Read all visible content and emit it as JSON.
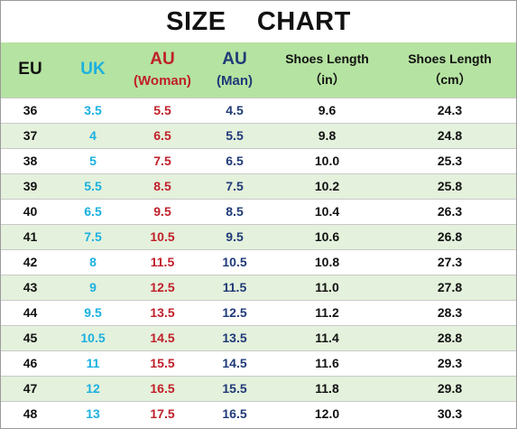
{
  "title": "SIZE    CHART",
  "headers": {
    "eu": "EU",
    "uk": "UK",
    "au_woman": "AU",
    "au_woman_sub": "(Woman)",
    "au_man": "AU",
    "au_man_sub": "(Man)",
    "length_in": "Shoes Length",
    "length_in_unit": "（in）",
    "length_cm": "Shoes Length",
    "length_cm_unit": "（cm）"
  },
  "colors": {
    "header_bg": "#b5e3a1",
    "row_alt_bg": "#e4f1dc",
    "uk": "#1bb0e0",
    "au_woman": "#c0202a",
    "au_man": "#1f3a78",
    "text": "#111111"
  },
  "rows": [
    [
      "36",
      "3.5",
      "5.5",
      "4.5",
      "9.6",
      "24.3"
    ],
    [
      "37",
      "4",
      "6.5",
      "5.5",
      "9.8",
      "24.8"
    ],
    [
      "38",
      "5",
      "7.5",
      "6.5",
      "10.0",
      "25.3"
    ],
    [
      "39",
      "5.5",
      "8.5",
      "7.5",
      "10.2",
      "25.8"
    ],
    [
      "40",
      "6.5",
      "9.5",
      "8.5",
      "10.4",
      "26.3"
    ],
    [
      "41",
      "7.5",
      "10.5",
      "9.5",
      "10.6",
      "26.8"
    ],
    [
      "42",
      "8",
      "11.5",
      "10.5",
      "10.8",
      "27.3"
    ],
    [
      "43",
      "9",
      "12.5",
      "11.5",
      "11.0",
      "27.8"
    ],
    [
      "44",
      "9.5",
      "13.5",
      "12.5",
      "11.2",
      "28.3"
    ],
    [
      "45",
      "10.5",
      "14.5",
      "13.5",
      "11.4",
      "28.8"
    ],
    [
      "46",
      "11",
      "15.5",
      "14.5",
      "11.6",
      "29.3"
    ],
    [
      "47",
      "12",
      "16.5",
      "15.5",
      "11.8",
      "29.8"
    ],
    [
      "48",
      "13",
      "17.5",
      "16.5",
      "12.0",
      "30.3"
    ]
  ]
}
